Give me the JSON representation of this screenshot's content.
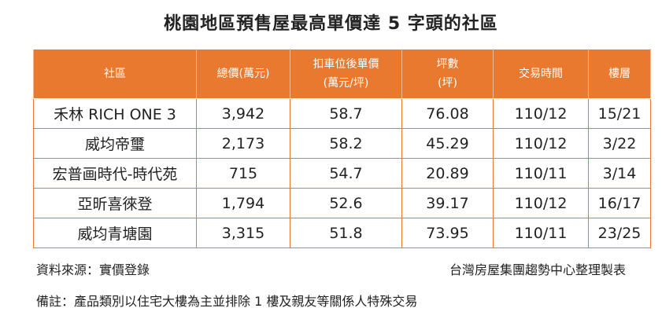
{
  "title": "桃園地區預售屋最高單價達 5 字頭的社區",
  "table": {
    "header": [
      [
        "社區"
      ],
      [
        "總價(萬元)"
      ],
      [
        "扣車位後單價",
        "(萬元/坪)"
      ],
      [
        "坪數",
        "(坪)"
      ],
      [
        "交易時間"
      ],
      [
        "樓層"
      ]
    ],
    "rows": [
      [
        "禾林 RICH ONE 3",
        "3,942",
        "58.7",
        "76.08",
        "110/12",
        "15/21"
      ],
      [
        "威均帝璽",
        "2,173",
        "58.2",
        "45.29",
        "110/12",
        "3/22"
      ],
      [
        "宏普画時代-時代苑",
        "715",
        "54.7",
        "20.89",
        "110/11",
        "3/14"
      ],
      [
        "亞昕喜徠登",
        "1,794",
        "52.6",
        "39.17",
        "110/12",
        "16/17"
      ],
      [
        "威均青塘園",
        "3,315",
        "51.8",
        "73.95",
        "110/11",
        "23/25"
      ]
    ]
  },
  "footer": {
    "source": "資料來源：實價登錄",
    "credit": "台灣房屋集團趨勢中心整理製表",
    "note": "備註：產品類別以住宅大樓為主並排除 1 樓及親友等關係人特殊交易"
  }
}
